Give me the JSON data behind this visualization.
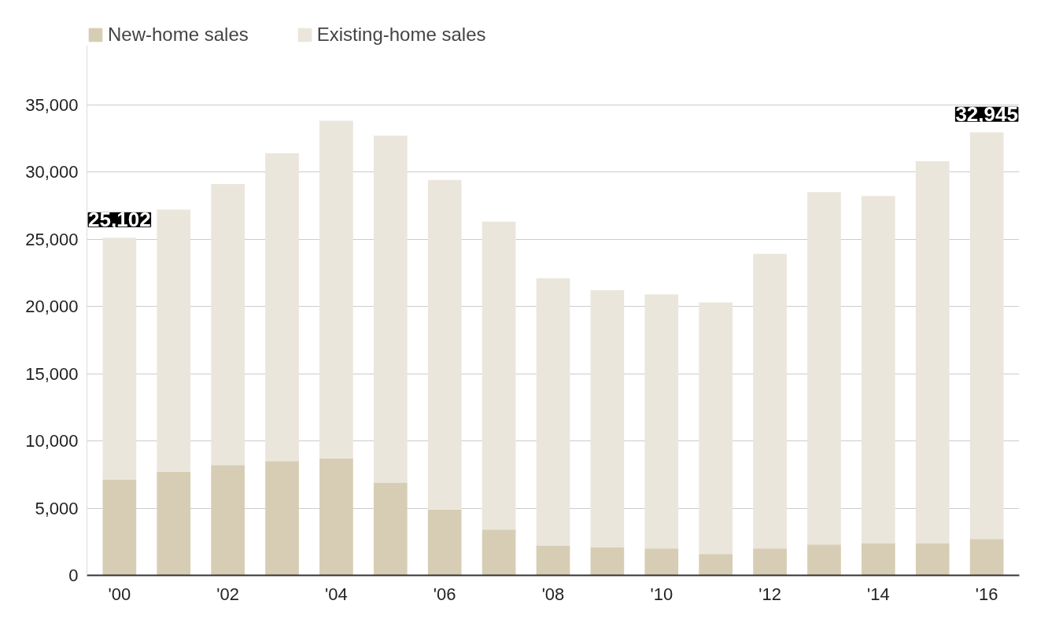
{
  "chart_data": {
    "type": "bar",
    "stacked": true,
    "categories": [
      "'00",
      null,
      "'02",
      null,
      "'04",
      null,
      "'06",
      null,
      "'08",
      null,
      "'10",
      null,
      "'12",
      null,
      "'14",
      null,
      "'16"
    ],
    "series": [
      {
        "name": "New-home sales",
        "color": "#d6cdb4",
        "values": [
          7100,
          7700,
          8200,
          8500,
          8700,
          6900,
          4900,
          3400,
          2200,
          2100,
          2000,
          1600,
          2000,
          2300,
          2400,
          2400,
          2700
        ]
      },
      {
        "name": "Existing-home sales",
        "color": "#ebe6dc",
        "values": [
          18002,
          19500,
          20900,
          22900,
          25100,
          25800,
          24500,
          22900,
          19900,
          19100,
          18900,
          18700,
          21900,
          26200,
          25800,
          28400,
          30245
        ]
      }
    ],
    "ylim": [
      0,
      41000
    ],
    "yticks": [
      0,
      {
        "value": 5000,
        "label": "5,000"
      },
      {
        "value": 10000,
        "label": "10,000"
      },
      {
        "value": 15000,
        "label": "15,000"
      },
      {
        "value": 20000,
        "label": "20,000"
      },
      {
        "value": 25000,
        "label": "25,000"
      },
      {
        "value": 30000,
        "label": "30,000"
      },
      {
        "value": 35000,
        "label": "35,000"
      }
    ],
    "grid": "y",
    "legend": "top left",
    "annotations": [
      {
        "text": "25,102",
        "x": "'00",
        "y": 25102
      },
      {
        "text": "32,945",
        "x": "'16",
        "y": 32945
      }
    ]
  }
}
